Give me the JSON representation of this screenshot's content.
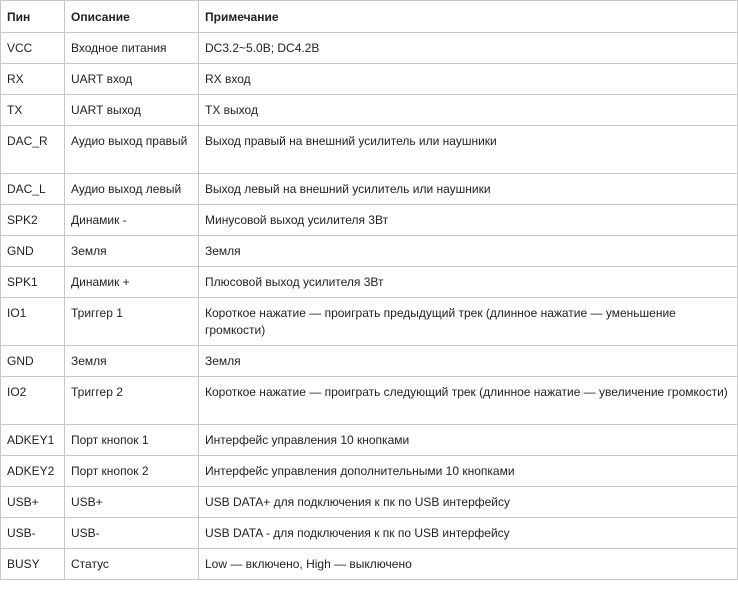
{
  "headers": [
    "Пин",
    "Описание",
    "Примечание"
  ],
  "rows": [
    {
      "pin": "VCC",
      "desc": "Входное питания",
      "note": "DC3.2~5.0В; DC4.2В"
    },
    {
      "pin": "RX",
      "desc": "UART вход",
      "note": "RX вход"
    },
    {
      "pin": "TX",
      "desc": "UART выход",
      "note": "TX выход"
    },
    {
      "pin": "DAC_R",
      "desc": "Аудио выход правый",
      "note": "Выход правый на внешний усилитель или наушники"
    },
    {
      "pin": "DAC_L",
      "desc": "Аудио выход левый",
      "note": "Выход левый на внешний  усилитель или наушники"
    },
    {
      "pin": "SPK2",
      "desc": "Динамик -",
      "note": "Минусовой выход  усилителя 3Вт"
    },
    {
      "pin": "GND",
      "desc": "Земля",
      "note": "Земля"
    },
    {
      "pin": "SPK1",
      "desc": "Динамик +",
      "note": "Плюсовой выход  усилителя 3Вт"
    },
    {
      "pin": "IO1",
      "desc": "Триггер 1",
      "note": "Короткое нажатие — проиграть предыдущий трек (длинное нажатие — уменьшение громкости)"
    },
    {
      "pin": "GND",
      "desc": "Земля",
      "note": "Земля"
    },
    {
      "pin": "IO2",
      "desc": "Триггер 2",
      "note": "Короткое нажатие — проиграть следующий трек (длинное нажатие — увеличение громкости)"
    },
    {
      "pin": "ADKEY1",
      "desc": "Порт кнопок 1",
      "note": "Интерфейс управления 10 кнопками"
    },
    {
      "pin": "ADKEY2",
      "desc": "Порт кнопок 2",
      "note": "Интерфейс управления  дополнительными 10 кнопками"
    },
    {
      "pin": "USB+",
      "desc": "USB+",
      "note": " USB DATA+ для подключения к пк по USB интерфейсу"
    },
    {
      "pin": "USB-",
      "desc": "USB-",
      "note": " USB DATA - для подключения к пк по USB интерфейсу"
    },
    {
      "pin": "BUSY",
      "desc": "Статус",
      "note": "Low — включено, High — выключено"
    }
  ]
}
